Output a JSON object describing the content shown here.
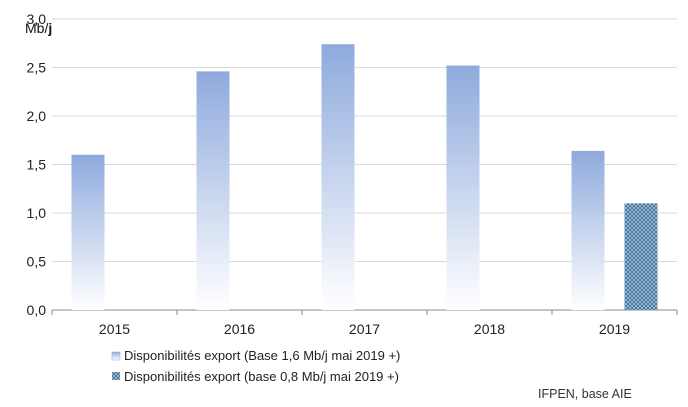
{
  "chart_data": {
    "type": "bar",
    "unit_label": "Mb/",
    "unit_label_bold": "j",
    "categories": [
      "2015",
      "2016",
      "2017",
      "2018",
      "2019"
    ],
    "series": [
      {
        "name": "Disponibilités export (Base 1,6 Mb/j mai 2019 +)",
        "values": [
          1.6,
          2.46,
          2.74,
          2.52,
          1.64
        ],
        "color": "#8faadc",
        "pattern": "gradient"
      },
      {
        "name": "Disponibilités export (base 0,8 Mb/j mai 2019 +)",
        "values": [
          null,
          null,
          null,
          null,
          1.1
        ],
        "color": "#5b8bb5",
        "pattern": "crosshatch"
      }
    ],
    "y_ticks": [
      "0,0",
      "0,5",
      "1,0",
      "1,5",
      "2,0",
      "2,5",
      "3,0"
    ],
    "ylim": [
      0,
      3.0
    ],
    "grid": true,
    "legend_position": "bottom-left"
  },
  "source": "IFPEN, base AIE"
}
